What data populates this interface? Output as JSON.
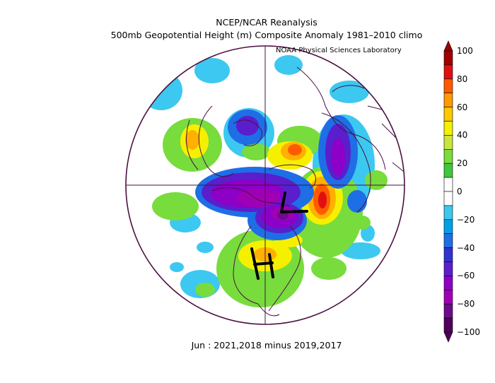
{
  "header": {
    "title": "NCEP/NCAR Reanalysis",
    "subtitle": "500mb Geopotential Height (m) Composite Anomaly 1981–2010 climo",
    "credit": "NOAA Physical Sciences Laboratory"
  },
  "caption": "Jun : 2021,2018 minus 2019,2017",
  "colorbar": {
    "labels": [
      "100",
      "80",
      "60",
      "40",
      "20",
      "0",
      "−20",
      "−40",
      "−60",
      "−80",
      "−100"
    ],
    "colors": [
      "#a00000",
      "#e01010",
      "#ff5a00",
      "#ff9a00",
      "#ffc800",
      "#f5f000",
      "#c8e63c",
      "#78dc3c",
      "#40c83c",
      "#ffffff",
      "#ffffff",
      "#3cc8f0",
      "#00a0e6",
      "#1e6ee6",
      "#3232d2",
      "#5a1ecd",
      "#8c00c8",
      "#a000b4",
      "#6e0a8c",
      "#50005a"
    ]
  },
  "annotations": [
    {
      "letter": "L",
      "meaning": "anomalous low drawn over Hudson Bay / Baffin"
    },
    {
      "letter": "H",
      "meaning": "anomalous high drawn over the central United States"
    }
  ],
  "colors": {
    "border": "#4a1040",
    "land": "#ffffff"
  }
}
